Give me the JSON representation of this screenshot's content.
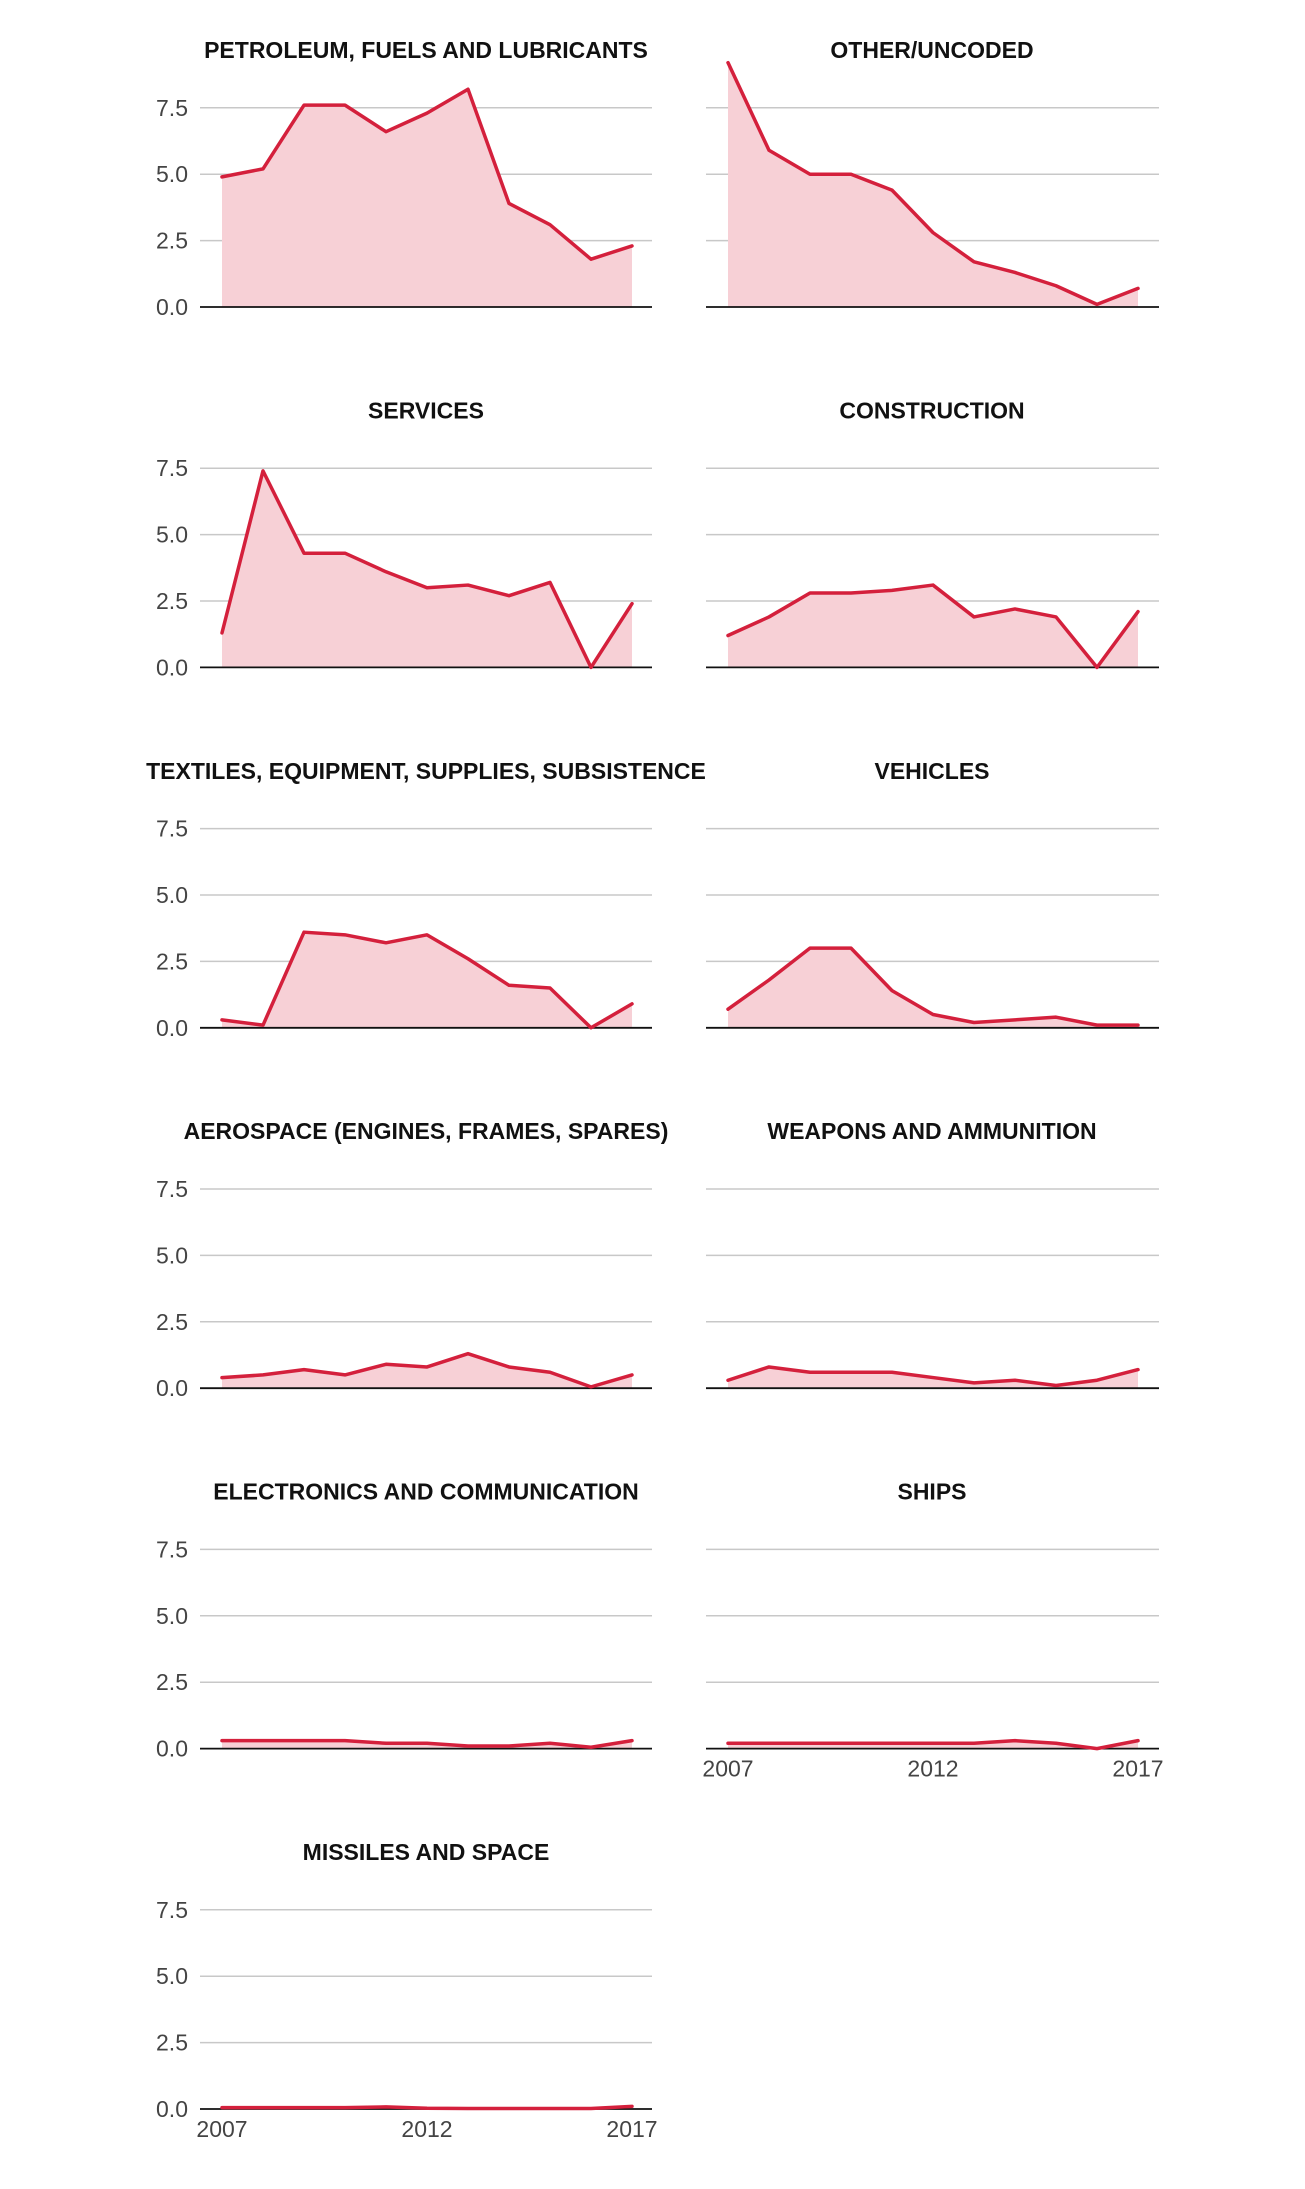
{
  "colors": {
    "line": "#d4203c",
    "fill": "#f7d0d6",
    "grid": "#c8c8c8",
    "axis": "#111111"
  },
  "chart_data": [
    {
      "type": "area",
      "title": "PETROLEUM, FUELS AND LUBRICANTS",
      "x": [
        2007,
        2008,
        2009,
        2010,
        2011,
        2012,
        2013,
        2014,
        2015,
        2016,
        2017
      ],
      "values": [
        4.9,
        5.2,
        7.6,
        7.6,
        6.6,
        7.3,
        8.2,
        3.9,
        3.1,
        1.8,
        2.3
      ],
      "yticks": [
        "0.0",
        "2.5",
        "5.0",
        "7.5"
      ],
      "xticks": [],
      "ylim": [
        0,
        7.5
      ],
      "grid": true
    },
    {
      "type": "area",
      "title": "OTHER/UNCODED",
      "x": [
        2007,
        2008,
        2009,
        2010,
        2011,
        2012,
        2013,
        2014,
        2015,
        2016,
        2017
      ],
      "values": [
        9.2,
        5.9,
        5.0,
        5.0,
        4.4,
        2.8,
        1.7,
        1.3,
        0.8,
        0.1,
        0.7
      ],
      "yticks": [],
      "xticks": [],
      "ylim": [
        0,
        7.5
      ],
      "grid": true
    },
    {
      "type": "area",
      "title": "SERVICES",
      "x": [
        2007,
        2008,
        2009,
        2010,
        2011,
        2012,
        2013,
        2014,
        2015,
        2016,
        2017
      ],
      "values": [
        1.3,
        7.4,
        4.3,
        4.3,
        3.6,
        3.0,
        3.1,
        2.7,
        3.2,
        0.0,
        2.4
      ],
      "yticks": [
        "0.0",
        "2.5",
        "5.0",
        "7.5"
      ],
      "xticks": [],
      "ylim": [
        0,
        7.5
      ],
      "grid": true
    },
    {
      "type": "area",
      "title": "CONSTRUCTION",
      "x": [
        2007,
        2008,
        2009,
        2010,
        2011,
        2012,
        2013,
        2014,
        2015,
        2016,
        2017
      ],
      "values": [
        1.2,
        1.9,
        2.8,
        2.8,
        2.9,
        3.1,
        1.9,
        2.2,
        1.9,
        0.0,
        2.1
      ],
      "yticks": [],
      "xticks": [],
      "ylim": [
        0,
        7.5
      ],
      "grid": true
    },
    {
      "type": "area",
      "title": "TEXTILES, EQUIPMENT, SUPPLIES, SUBSISTENCE",
      "x": [
        2007,
        2008,
        2009,
        2010,
        2011,
        2012,
        2013,
        2014,
        2015,
        2016,
        2017
      ],
      "values": [
        0.3,
        0.1,
        3.6,
        3.5,
        3.2,
        3.5,
        2.6,
        1.6,
        1.5,
        0.0,
        0.9
      ],
      "yticks": [
        "0.0",
        "2.5",
        "5.0",
        "7.5"
      ],
      "xticks": [],
      "ylim": [
        0,
        7.5
      ],
      "grid": true
    },
    {
      "type": "area",
      "title": "VEHICLES",
      "x": [
        2007,
        2008,
        2009,
        2010,
        2011,
        2012,
        2013,
        2014,
        2015,
        2016,
        2017
      ],
      "values": [
        0.7,
        1.8,
        3.0,
        3.0,
        1.4,
        0.5,
        0.2,
        0.3,
        0.4,
        0.1,
        0.1
      ],
      "yticks": [],
      "xticks": [],
      "ylim": [
        0,
        7.5
      ],
      "grid": true
    },
    {
      "type": "area",
      "title": "AEROSPACE (ENGINES, FRAMES, SPARES)",
      "x": [
        2007,
        2008,
        2009,
        2010,
        2011,
        2012,
        2013,
        2014,
        2015,
        2016,
        2017
      ],
      "values": [
        0.4,
        0.5,
        0.7,
        0.5,
        0.9,
        0.8,
        1.3,
        0.8,
        0.6,
        0.05,
        0.5
      ],
      "yticks": [
        "0.0",
        "2.5",
        "5.0",
        "7.5"
      ],
      "xticks": [],
      "ylim": [
        0,
        7.5
      ],
      "grid": true
    },
    {
      "type": "area",
      "title": "WEAPONS AND AMMUNITION",
      "x": [
        2007,
        2008,
        2009,
        2010,
        2011,
        2012,
        2013,
        2014,
        2015,
        2016,
        2017
      ],
      "values": [
        0.3,
        0.8,
        0.6,
        0.6,
        0.6,
        0.4,
        0.2,
        0.3,
        0.1,
        0.3,
        0.7
      ],
      "yticks": [],
      "xticks": [],
      "ylim": [
        0,
        7.5
      ],
      "grid": true
    },
    {
      "type": "area",
      "title": "ELECTRONICS AND COMMUNICATION",
      "x": [
        2007,
        2008,
        2009,
        2010,
        2011,
        2012,
        2013,
        2014,
        2015,
        2016,
        2017
      ],
      "values": [
        0.3,
        0.3,
        0.3,
        0.3,
        0.2,
        0.2,
        0.1,
        0.1,
        0.2,
        0.05,
        0.3
      ],
      "yticks": [
        "0.0",
        "2.5",
        "5.0",
        "7.5"
      ],
      "xticks": [],
      "ylim": [
        0,
        7.5
      ],
      "grid": true
    },
    {
      "type": "area",
      "title": "SHIPS",
      "x": [
        2007,
        2008,
        2009,
        2010,
        2011,
        2012,
        2013,
        2014,
        2015,
        2016,
        2017
      ],
      "values": [
        0.2,
        0.2,
        0.2,
        0.2,
        0.2,
        0.2,
        0.2,
        0.3,
        0.2,
        0.0,
        0.3
      ],
      "yticks": [],
      "xticks": [
        "2007",
        "2012",
        "2017"
      ],
      "ylim": [
        0,
        7.5
      ],
      "grid": true
    },
    {
      "type": "area",
      "title": "MISSILES AND SPACE",
      "x": [
        2007,
        2008,
        2009,
        2010,
        2011,
        2012,
        2013,
        2014,
        2015,
        2016,
        2017
      ],
      "values": [
        0.05,
        0.05,
        0.05,
        0.05,
        0.08,
        0.03,
        0.02,
        0.02,
        0.02,
        0.02,
        0.1
      ],
      "yticks": [
        "0.0",
        "2.5",
        "5.0",
        "7.5"
      ],
      "xticks": [
        "2007",
        "2012",
        "2017"
      ],
      "ylim": [
        0,
        7.5
      ],
      "grid": true
    }
  ]
}
